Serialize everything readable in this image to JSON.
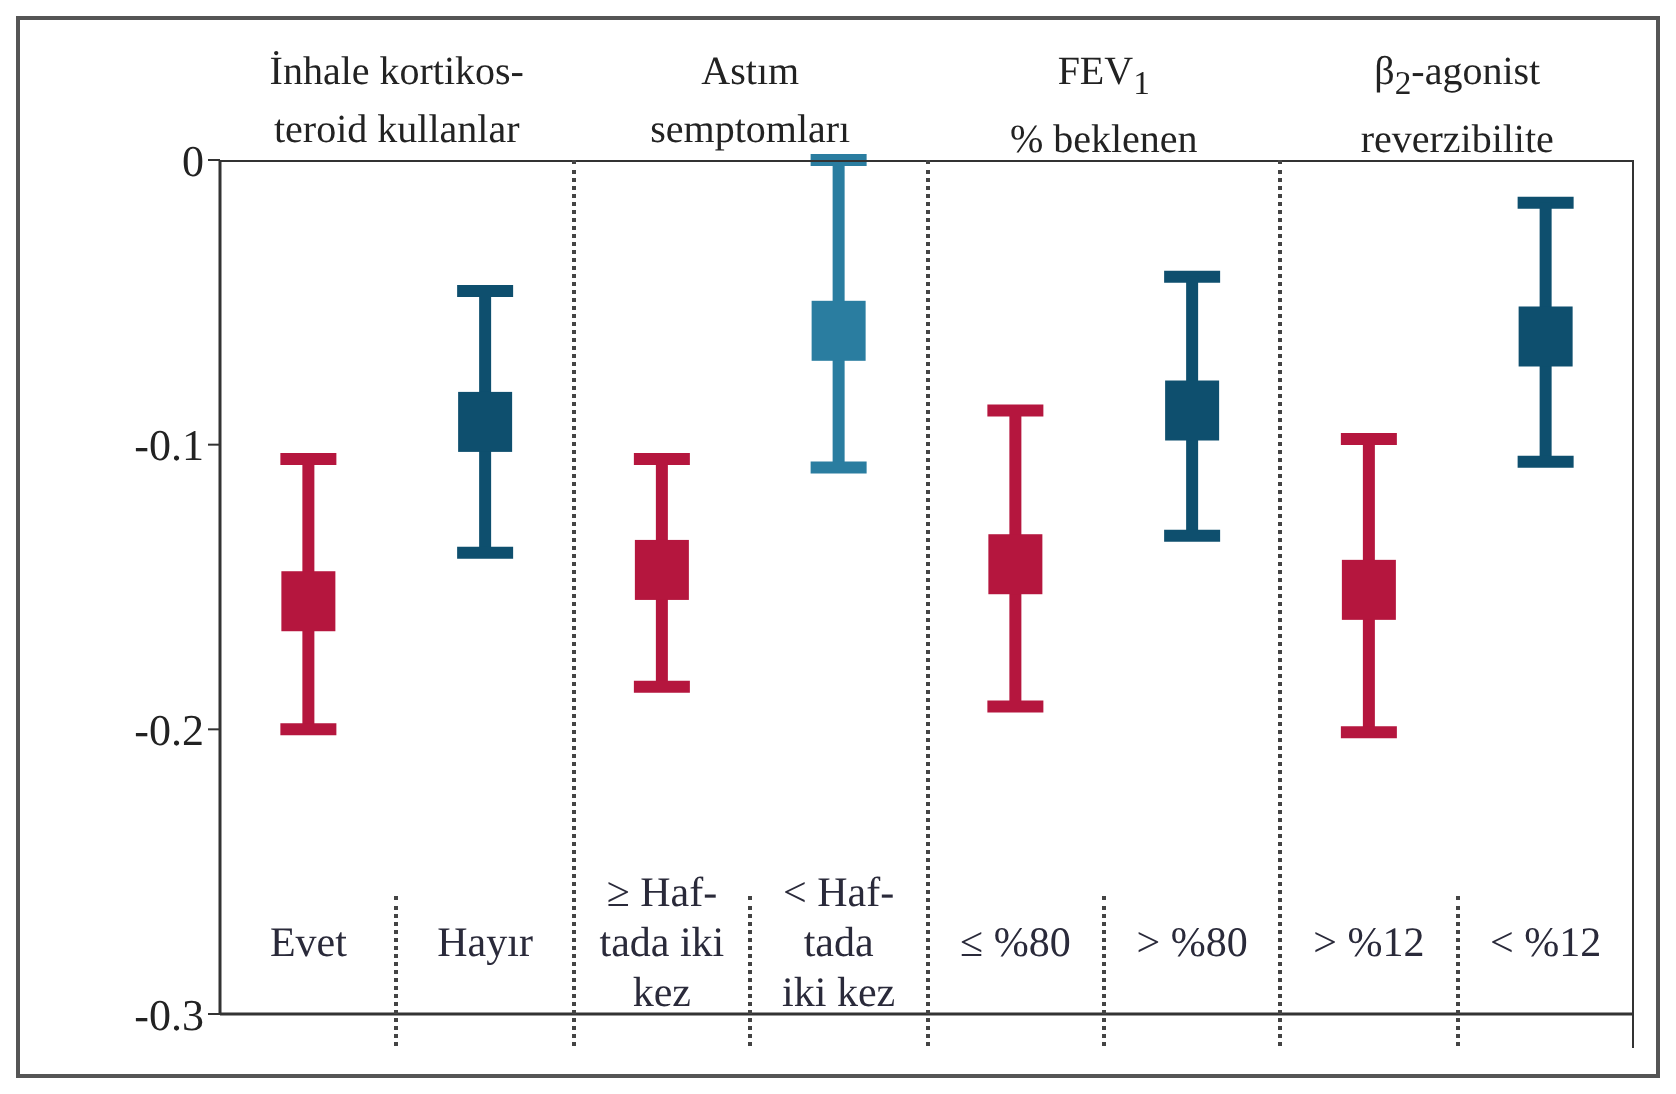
{
  "chart_data": {
    "type": "scatter",
    "categories": [
      "Evet",
      "Hayır",
      "≥ Haf-\ntada iki\nkez",
      "< Haf-\ntada\niki kez",
      "≤ %80",
      "> %80",
      "> %12",
      "< %12"
    ],
    "values": [
      -0.155,
      -0.092,
      -0.144,
      -0.06,
      -0.142,
      -0.088,
      -0.151,
      -0.062
    ],
    "errors": [
      [
        -0.2,
        -0.105
      ],
      [
        -0.138,
        -0.046
      ],
      [
        -0.185,
        -0.105
      ],
      [
        -0.108,
        0
      ],
      [
        -0.192,
        -0.088
      ],
      [
        -0.132,
        -0.041
      ],
      [
        -0.201,
        -0.098
      ],
      [
        -0.106,
        -0.015
      ]
    ],
    "colors": [
      "#b5163e",
      "#0e4f6e",
      "#b5163e",
      "#2a7da0",
      "#b5163e",
      "#0e4f6e",
      "#b5163e",
      "#0e4f6e"
    ],
    "marker": "square",
    "ylim": [
      -0.3,
      0
    ],
    "yticks": [
      0,
      -0.1,
      -0.2,
      -0.3
    ],
    "grid": false,
    "legend": false,
    "annotations": [
      "İnhale kortikos-\nteroid kullanlar",
      "Astım\nsemptomları",
      "FEV$_{1}$\n% beklenen",
      "β$_{2}$-agonist\nreverzibilite"
    ]
  }
}
